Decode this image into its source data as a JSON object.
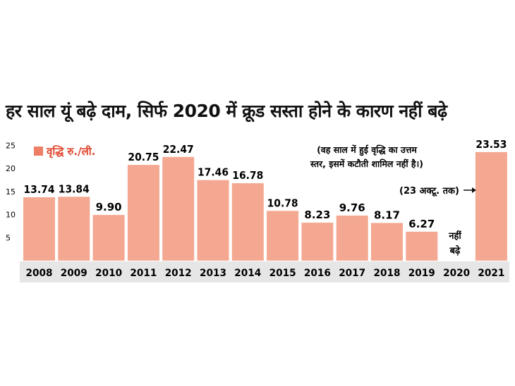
{
  "colors": {
    "bar": "#f4a891",
    "legend": "#ee7f66",
    "legend_text": "#e0452e",
    "strip": "#e6e6e6"
  },
  "chart_data": {
    "type": "bar",
    "title": "हर साल यूं बढ़े दाम, सिर्फ 2020 में क्रूड सस्ता होने के कारण नहीं बढ़े",
    "legend": "वृद्धि रु./ली.",
    "note": "(वह साल में हुई वृद्धि का उत्तम स्तर, इसमें कटौती शामिल नहीं है।)",
    "categories": [
      "2008",
      "2009",
      "2010",
      "2011",
      "2012",
      "2013",
      "2014",
      "2015",
      "2016",
      "2017",
      "2018",
      "2019",
      "2020",
      "2021"
    ],
    "values": [
      13.74,
      13.84,
      9.9,
      20.75,
      22.47,
      17.46,
      16.78,
      10.78,
      8.23,
      9.76,
      8.17,
      6.27,
      null,
      23.53
    ],
    "value_labels": [
      "13.74",
      "13.84",
      "9.90",
      "20.75",
      "22.47",
      "17.46",
      "16.78",
      "10.78",
      "8.23",
      "9.76",
      "8.17",
      "6.27",
      "",
      "23.53"
    ],
    "no_increase_label_line1": "नहीं",
    "no_increase_label_line2": "बढ़े",
    "annotation_2021": "(23 अक्टू. तक)",
    "yticks": [
      "5",
      "10",
      "15",
      "20",
      "25"
    ],
    "ylim": [
      0,
      25
    ]
  }
}
